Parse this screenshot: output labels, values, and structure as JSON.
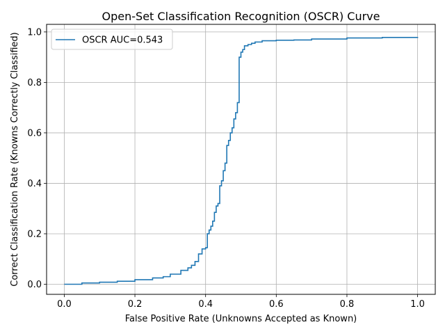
{
  "chart_data": {
    "type": "line",
    "title": "Open-Set Classification Recognition (OSCR) Curve",
    "xlabel": "False Positive Rate (Unknowns Accepted as Known)",
    "ylabel": "Correct Classification Rate (Knowns Correctly Classified)",
    "xlim": [
      -0.05,
      1.05
    ],
    "ylim": [
      -0.04,
      1.03
    ],
    "xticks": [
      0.0,
      0.2,
      0.4,
      0.6,
      0.8,
      1.0
    ],
    "xtick_labels": [
      "0.0",
      "0.2",
      "0.4",
      "0.6",
      "0.8",
      "1.0"
    ],
    "yticks": [
      0.0,
      0.2,
      0.4,
      0.6,
      0.8,
      1.0
    ],
    "ytick_labels": [
      "0.0",
      "0.2",
      "0.4",
      "0.6",
      "0.8",
      "1.0"
    ],
    "grid": true,
    "legend_position": "top-left",
    "line_color": "#1f77b4",
    "series": [
      {
        "name": "OSCR AUC=0.543",
        "x": [
          0.0,
          0.05,
          0.1,
          0.15,
          0.2,
          0.25,
          0.28,
          0.3,
          0.33,
          0.35,
          0.36,
          0.37,
          0.38,
          0.39,
          0.4,
          0.405,
          0.41,
          0.415,
          0.42,
          0.425,
          0.43,
          0.435,
          0.44,
          0.445,
          0.45,
          0.455,
          0.46,
          0.465,
          0.47,
          0.475,
          0.48,
          0.485,
          0.49,
          0.495,
          0.5,
          0.505,
          0.51,
          0.52,
          0.53,
          0.54,
          0.56,
          0.6,
          0.65,
          0.7,
          0.8,
          0.9,
          1.0
        ],
        "y": [
          0.0,
          0.005,
          0.008,
          0.012,
          0.018,
          0.025,
          0.03,
          0.04,
          0.055,
          0.065,
          0.075,
          0.09,
          0.12,
          0.14,
          0.145,
          0.2,
          0.215,
          0.23,
          0.25,
          0.285,
          0.31,
          0.32,
          0.39,
          0.41,
          0.45,
          0.48,
          0.55,
          0.57,
          0.6,
          0.62,
          0.655,
          0.68,
          0.72,
          0.9,
          0.92,
          0.93,
          0.945,
          0.95,
          0.955,
          0.96,
          0.965,
          0.967,
          0.968,
          0.972,
          0.976,
          0.978,
          0.98
        ]
      }
    ]
  }
}
